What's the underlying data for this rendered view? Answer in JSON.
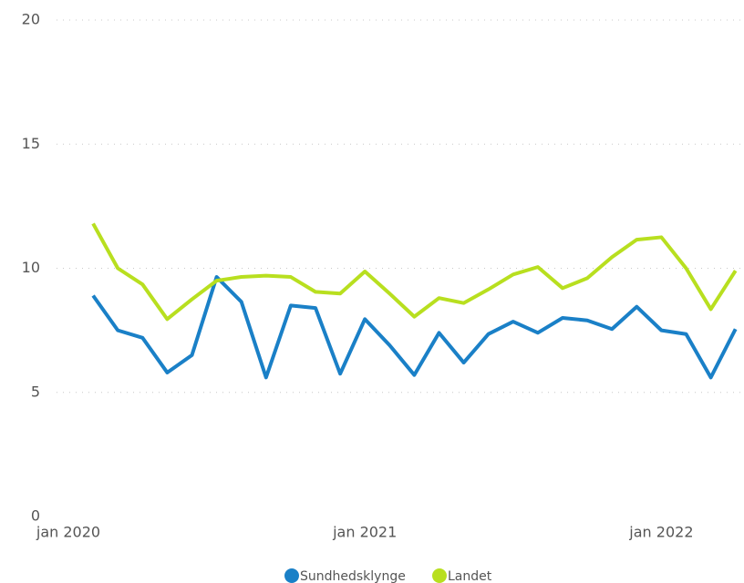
{
  "chart_data": {
    "type": "line",
    "x": [
      "2020-02",
      "2020-03",
      "2020-04",
      "2020-05",
      "2020-06",
      "2020-07",
      "2020-08",
      "2020-09",
      "2020-10",
      "2020-11",
      "2020-12",
      "2021-01",
      "2021-02",
      "2021-03",
      "2021-04",
      "2021-05",
      "2021-06",
      "2021-07",
      "2021-08",
      "2021-09",
      "2021-10",
      "2021-11",
      "2021-12",
      "2022-01",
      "2022-02",
      "2022-03",
      "2022-04"
    ],
    "xticks": [
      {
        "value": "2020-01",
        "label": "jan 2020"
      },
      {
        "value": "2021-01",
        "label": "jan 2021"
      },
      {
        "value": "2022-01",
        "label": "jan 2022"
      }
    ],
    "ylim": [
      0,
      20
    ],
    "yticks": [
      0,
      5,
      10,
      15,
      20
    ],
    "grid": true,
    "legend": "bottom",
    "series": [
      {
        "name": "Sundhedsklynge",
        "color": "#1a80c7",
        "values": [
          8.9,
          7.5,
          7.2,
          5.8,
          6.5,
          9.65,
          8.65,
          5.6,
          8.5,
          8.4,
          5.75,
          7.95,
          6.9,
          5.7,
          7.4,
          6.2,
          7.35,
          7.85,
          7.4,
          8.0,
          7.9,
          7.55,
          8.45,
          7.5,
          7.35,
          5.6,
          7.55
        ]
      },
      {
        "name": "Landet",
        "color": "#b8df1f",
        "values": [
          11.8,
          10.0,
          9.35,
          7.95,
          8.75,
          9.5,
          9.65,
          9.7,
          9.65,
          9.05,
          8.98,
          9.87,
          8.98,
          8.05,
          8.8,
          8.6,
          9.15,
          9.75,
          10.05,
          9.2,
          9.6,
          10.45,
          11.15,
          11.25,
          10.0,
          8.35,
          9.9
        ]
      }
    ]
  }
}
